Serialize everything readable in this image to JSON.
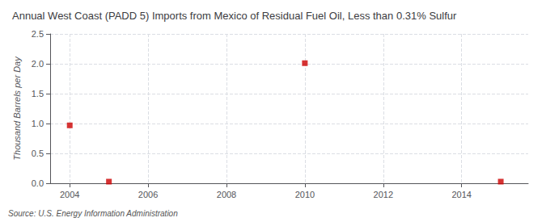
{
  "chart_data": {
    "type": "scatter",
    "title": "Annual West Coast (PADD 5) Imports from Mexico of Residual Fuel Oil, Less than 0.31% Sulfur",
    "ylabel": "Thousand Barrels per Day",
    "annotation": "Source: U.S. Energy Information Administration",
    "x": [
      2004,
      2005,
      2010,
      2015
    ],
    "values": [
      0.969,
      0.027,
      2.01,
      0.027
    ],
    "color": "#cc0000",
    "marker": "square",
    "xlim": [
      2003.5,
      2015.7
    ],
    "xticks": [
      2004,
      2006,
      2008,
      2010,
      2012,
      2014
    ],
    "ylim": [
      0,
      2.5
    ],
    "yticks": [
      {
        "value": 0,
        "label": "0.0"
      },
      0.5,
      {
        "value": 1,
        "label": "1.0"
      },
      1.5,
      {
        "value": 2,
        "label": "2.0"
      },
      2.5
    ],
    "grid": true
  }
}
